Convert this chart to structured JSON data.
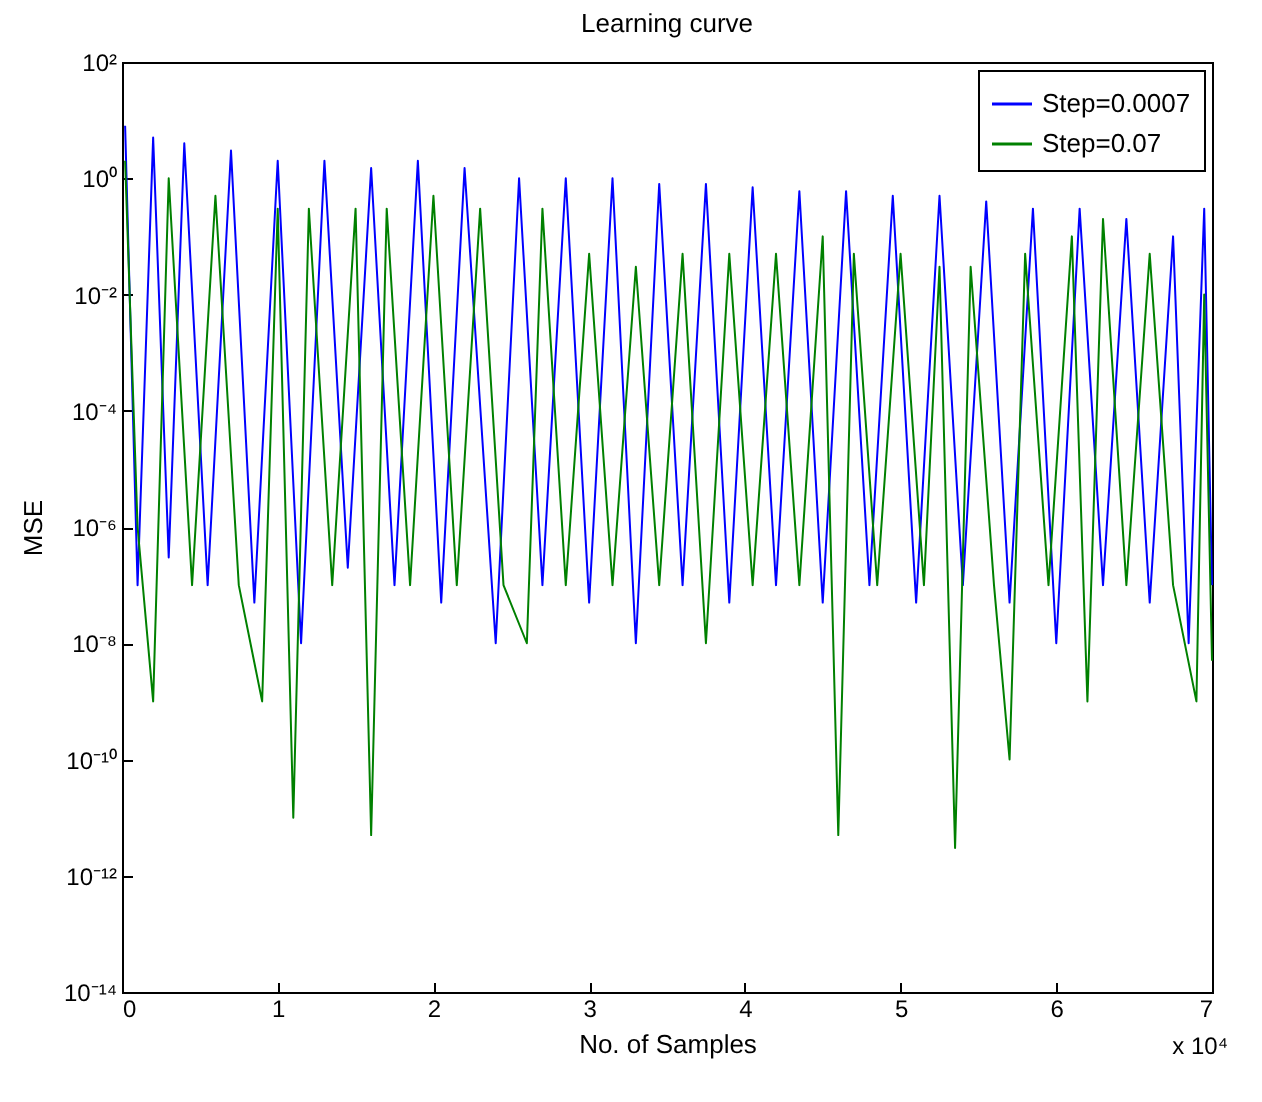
{
  "chart_data": {
    "type": "line",
    "title": "Learning curve",
    "xlabel": "No. of Samples",
    "ylabel": "MSE",
    "log": "y",
    "grid": false,
    "legend": "top right",
    "marker": "none",
    "line_style": "solid",
    "xlim": [
      0,
      7
    ],
    "xticks": [
      0,
      1,
      2,
      3,
      4,
      5,
      6,
      7
    ],
    "ylim": [
      1e-14,
      100
    ],
    "yticks": [
      {
        "value": 100,
        "label": "10²"
      },
      {
        "value": 1,
        "label": "10⁰"
      },
      {
        "value": 0.01,
        "label": "10⁻²"
      },
      {
        "value": 0.0001,
        "label": "10⁻⁴"
      },
      {
        "value": 1e-06,
        "label": "10⁻⁶"
      },
      {
        "value": 1e-08,
        "label": "10⁻⁸"
      },
      {
        "value": 1e-10,
        "label": "10⁻¹⁰"
      },
      {
        "value": 1e-12,
        "label": "10⁻¹²"
      },
      {
        "value": 1e-14,
        "label": "10⁻¹⁴"
      }
    ],
    "annotations": [
      "x 10⁴"
    ],
    "series": [
      {
        "name": "Step=0.0007",
        "color": "#0000ff",
        "x": [
          0.02,
          0.1,
          0.2,
          0.3,
          0.4,
          0.55,
          0.7,
          0.85,
          1.0,
          1.15,
          1.3,
          1.45,
          1.6,
          1.75,
          1.9,
          2.05,
          2.2,
          2.4,
          2.55,
          2.7,
          2.85,
          3.0,
          3.15,
          3.3,
          3.45,
          3.6,
          3.75,
          3.9,
          4.05,
          4.2,
          4.35,
          4.5,
          4.65,
          4.8,
          4.95,
          5.1,
          5.25,
          5.4,
          5.55,
          5.7,
          5.85,
          6.0,
          6.15,
          6.3,
          6.45,
          6.6,
          6.75,
          6.85,
          6.95,
          7.0
        ],
        "values": [
          8,
          1e-07,
          5,
          3e-07,
          4,
          1e-07,
          3,
          5e-08,
          2,
          1e-08,
          2,
          2e-07,
          1.5,
          1e-07,
          2,
          5e-08,
          1.5,
          1e-08,
          1,
          1e-07,
          1,
          5e-08,
          1,
          1e-08,
          0.8,
          1e-07,
          0.8,
          5e-08,
          0.7,
          1e-07,
          0.6,
          5e-08,
          0.6,
          1e-07,
          0.5,
          5e-08,
          0.5,
          1e-07,
          0.4,
          5e-08,
          0.3,
          1e-08,
          0.3,
          1e-07,
          0.2,
          5e-08,
          0.1,
          1e-08,
          0.3,
          1e-07
        ]
      },
      {
        "name": "Step=0.07",
        "color": "#008000",
        "x": [
          0.02,
          0.1,
          0.2,
          0.3,
          0.45,
          0.6,
          0.75,
          0.9,
          1.0,
          1.1,
          1.2,
          1.35,
          1.5,
          1.6,
          1.7,
          1.85,
          2.0,
          2.15,
          2.3,
          2.45,
          2.6,
          2.7,
          2.85,
          3.0,
          3.15,
          3.3,
          3.45,
          3.6,
          3.75,
          3.9,
          4.05,
          4.2,
          4.35,
          4.5,
          4.6,
          4.7,
          4.85,
          5.0,
          5.15,
          5.25,
          5.35,
          5.45,
          5.6,
          5.7,
          5.8,
          5.95,
          6.1,
          6.2,
          6.3,
          6.45,
          6.6,
          6.75,
          6.9,
          6.95,
          7.0
        ],
        "values": [
          2,
          1e-06,
          1e-09,
          1,
          1e-07,
          0.5,
          1e-07,
          1e-09,
          0.3,
          1e-11,
          0.3,
          1e-07,
          0.3,
          5e-12,
          0.3,
          1e-07,
          0.5,
          1e-07,
          0.3,
          1e-07,
          1e-08,
          0.3,
          1e-07,
          0.05,
          1e-07,
          0.03,
          1e-07,
          0.05,
          1e-08,
          0.05,
          1e-07,
          0.05,
          1e-07,
          0.1,
          5e-12,
          0.05,
          1e-07,
          0.05,
          1e-07,
          0.03,
          3e-12,
          0.03,
          1e-07,
          1e-10,
          0.05,
          1e-07,
          0.1,
          1e-09,
          0.2,
          1e-07,
          0.05,
          1e-07,
          1e-09,
          0.01,
          5e-09
        ]
      }
    ]
  }
}
